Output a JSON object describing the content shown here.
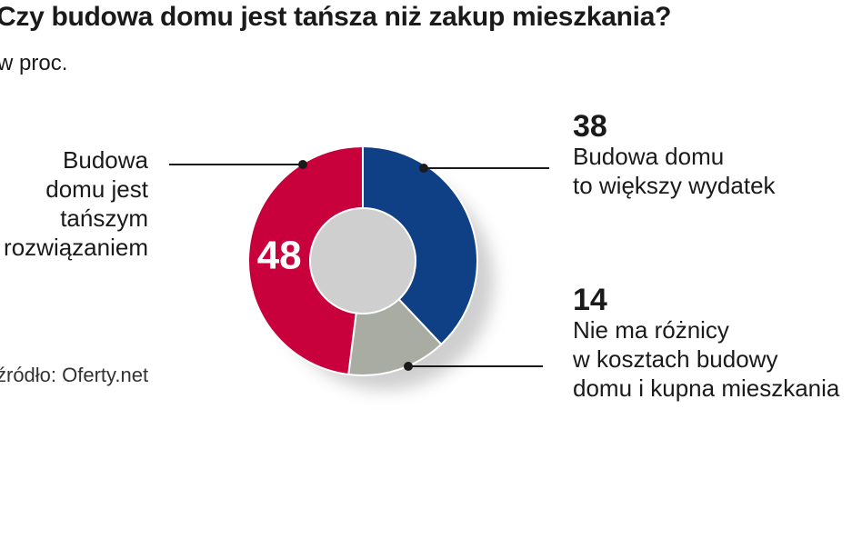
{
  "title": "Czy budowa domu jest tańsza niż zakup mieszkania?",
  "subtitle": "w proc.",
  "source": "źródło: Oferty.net",
  "chart_data": {
    "type": "pie",
    "style": "donut",
    "slices": [
      {
        "value": 38,
        "value_label": "38",
        "label_lines": [
          "Budowa domu",
          "to większy wydatek"
        ],
        "color": "#0f3f85"
      },
      {
        "value": 14,
        "value_label": "14",
        "label_lines": [
          "Nie ma różnicy",
          "w kosztach budowy",
          "domu i kupna mieszkania"
        ],
        "color": "#a9aca2"
      },
      {
        "value": 48,
        "value_label": "48",
        "label_lines": [
          "Budowa",
          "domu jest",
          "tańszym",
          "rozwiązaniem"
        ],
        "color": "#c8003c"
      }
    ]
  }
}
